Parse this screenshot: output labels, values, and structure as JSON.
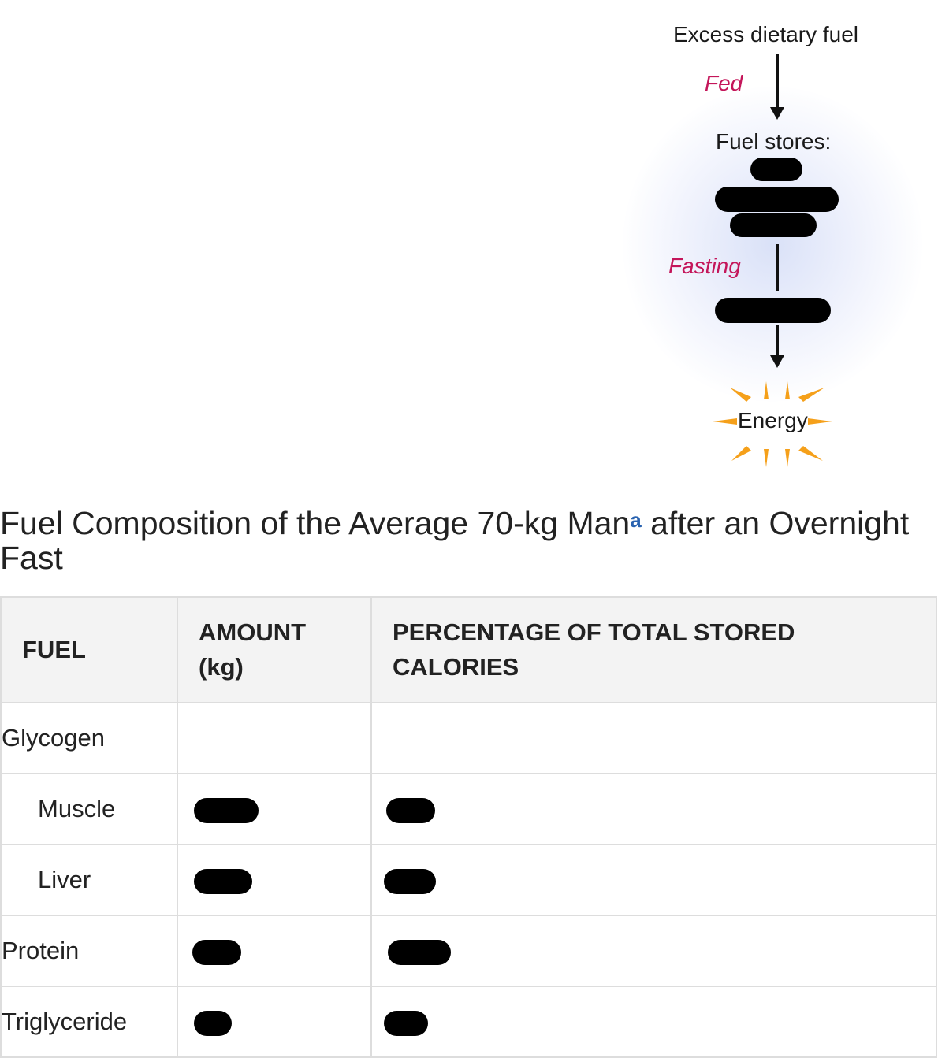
{
  "diagram": {
    "excess_label": "Excess dietary fuel",
    "fed_label": "Fed",
    "stores_label": "Fuel stores:",
    "fasting_label": "Fasting",
    "energy_label": "Energy"
  },
  "title": {
    "text_before": "Fuel Composition of the Average 70-kg Man",
    "footnote": "a",
    "text_after": " after an Overnight Fast"
  },
  "table": {
    "headers": {
      "fuel": "FUEL",
      "amount": "AMOUNT (kg)",
      "percentage": "PERCENTAGE OF TOTAL STORED CALORIES"
    },
    "rows": [
      {
        "fuel": "Glycogen"
      },
      {
        "fuel": "Muscle"
      },
      {
        "fuel": "Liver"
      },
      {
        "fuel": "Protein"
      },
      {
        "fuel": "Triglyceride"
      }
    ]
  },
  "colors": {
    "phase_label": "#c4165a",
    "footnote": "#2a63b0",
    "energy_burst": "#f5a01a",
    "header_bg": "#f3f3f3",
    "border": "#dddddd"
  }
}
